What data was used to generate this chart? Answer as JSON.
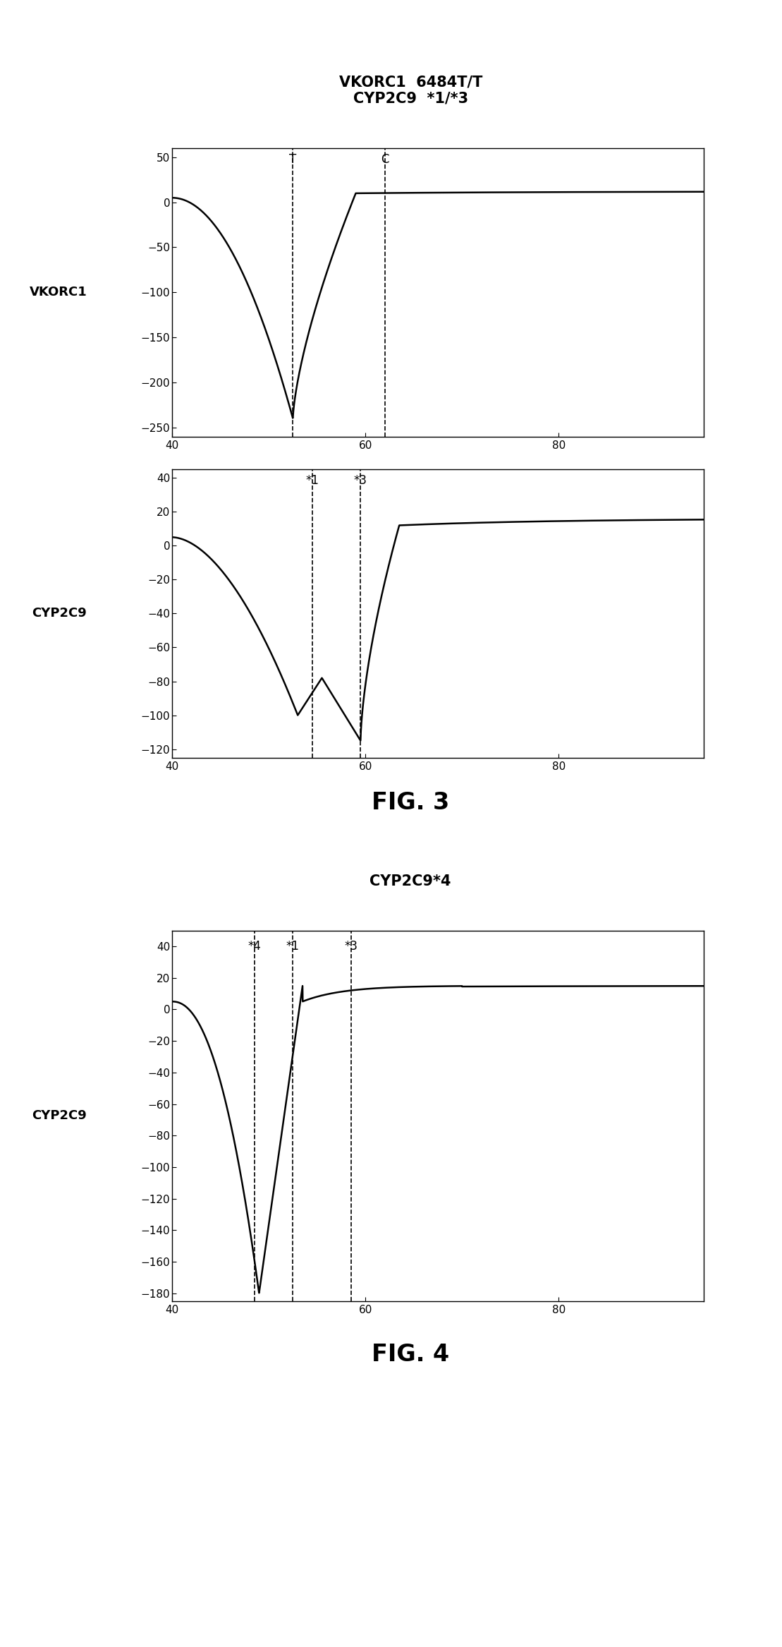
{
  "fig3_title": "VKORC1  6484T/T\nCYP2C9  *1/*3",
  "fig4_title": "CYP2C9*4",
  "fig3_label": "FIG. 3",
  "fig4_label": "FIG. 4",
  "background_color": "#ffffff",
  "line_color": "#000000",
  "plot1": {
    "ylabel_text": "VKORC1",
    "xlim": [
      40,
      95
    ],
    "ylim": [
      -260,
      60
    ],
    "yticks": [
      50,
      0,
      -50,
      -100,
      -150,
      -200,
      -250
    ],
    "xticks": [
      40,
      60,
      80
    ],
    "vlines": [
      {
        "x": 52.5,
        "label": "T"
      },
      {
        "x": 62.0,
        "label": "C"
      }
    ]
  },
  "plot2": {
    "ylabel_text": "CYP2C9",
    "xlim": [
      40,
      95
    ],
    "ylim": [
      -125,
      45
    ],
    "yticks": [
      40,
      20,
      0,
      -20,
      -40,
      -60,
      -80,
      -100,
      -120
    ],
    "xticks": [
      40,
      60,
      80
    ],
    "vlines": [
      {
        "x": 54.5,
        "label": "*1"
      },
      {
        "x": 59.5,
        "label": "*3"
      }
    ]
  },
  "plot3": {
    "ylabel_text": "CYP2C9",
    "xlim": [
      40,
      95
    ],
    "ylim": [
      -185,
      50
    ],
    "yticks": [
      40,
      20,
      0,
      -20,
      -40,
      -60,
      -80,
      -100,
      -120,
      -140,
      -160,
      -180
    ],
    "xticks": [
      40,
      60,
      80
    ],
    "vlines": [
      {
        "x": 48.5,
        "label": "*4"
      },
      {
        "x": 52.5,
        "label": "*1"
      },
      {
        "x": 58.5,
        "label": "*3"
      }
    ]
  }
}
